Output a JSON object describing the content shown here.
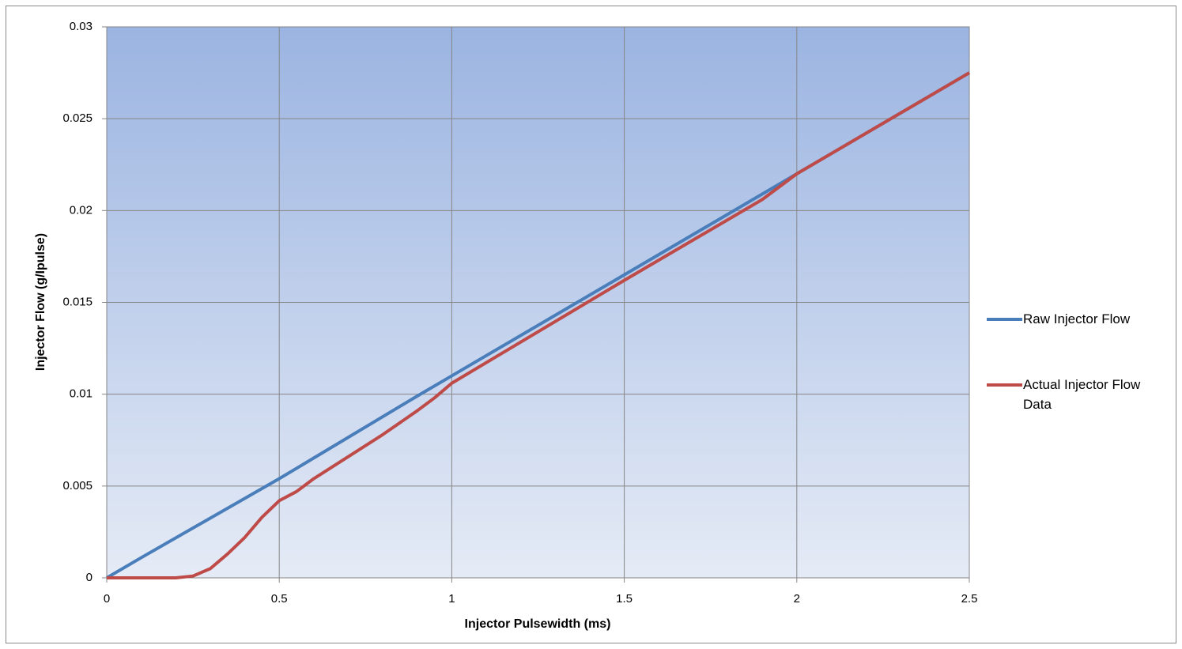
{
  "chart_data": {
    "type": "line",
    "x_label": "Injector Pulsewidth (ms)",
    "y_label": "Injector Flow  (g/Ipulse)",
    "xlim": [
      0,
      2.5
    ],
    "xticks": [
      0,
      0.5,
      1,
      1.5,
      2,
      2.5
    ],
    "ylim": [
      0,
      0.03
    ],
    "yticks": [
      0,
      0.005,
      0.01,
      0.015,
      0.02,
      0.025,
      0.03
    ],
    "grid": true,
    "legend": "right",
    "series": [
      {
        "name": "Raw Injector Flow",
        "color": "#4a7ebb",
        "x": [
          0,
          0.1,
          0.5,
          0.9,
          1,
          1.5,
          2,
          2.5
        ],
        "values": [
          0,
          0.0011,
          0.0054,
          0.0099,
          0.011,
          0.0165,
          0.022,
          0.0275
        ]
      },
      {
        "name": "Actual Injector Flow Data",
        "color": "#be4b48",
        "x": [
          0,
          0.1,
          0.2,
          0.25,
          0.3,
          0.35,
          0.4,
          0.45,
          0.5,
          0.55,
          0.6,
          0.7,
          0.8,
          0.9,
          0.95,
          1,
          1.5,
          1.9,
          2,
          2.5
        ],
        "values": [
          0,
          0,
          0,
          0.0001,
          0.0005,
          0.0013,
          0.0022,
          0.0033,
          0.0042,
          0.0047,
          0.0054,
          0.0066,
          0.0078,
          0.0091,
          0.0098,
          0.0106,
          0.0162,
          0.0206,
          0.022,
          0.0275
        ]
      }
    ]
  }
}
